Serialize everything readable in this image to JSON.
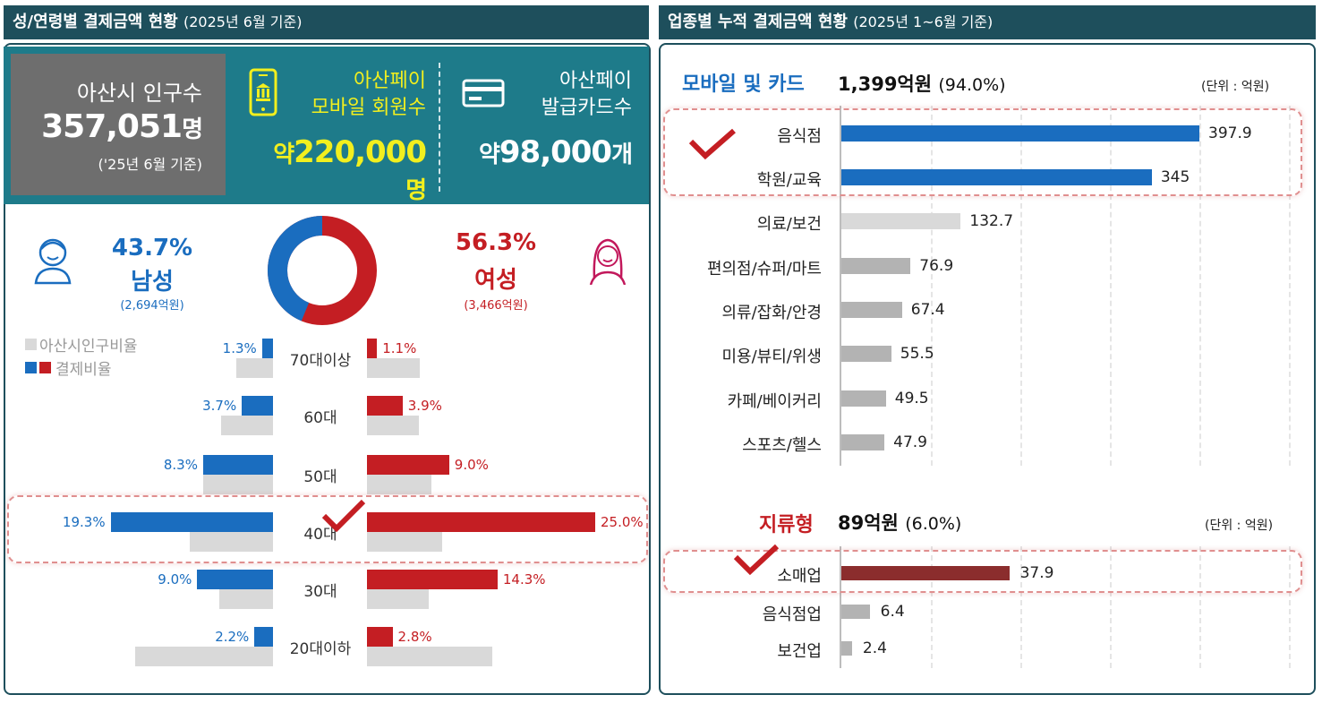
{
  "left": {
    "header": {
      "title": "성/연령별 결제금액 현황",
      "sub": "(2025년 6월 기준)"
    },
    "population": {
      "label": "아산시 인구수",
      "value": "357,051",
      "unit": "명",
      "note": "('25년 6월 기준)"
    },
    "mobile_members": {
      "title_line1": "아산페이",
      "title_line2": "모바일 회원수",
      "prefix": "약",
      "value": "220,000",
      "unit": "명",
      "icon": "mobile-bank-icon"
    },
    "cards_issued": {
      "title_line1": "아산페이",
      "title_line2": "발급카드수",
      "prefix": "약",
      "value": "98,000",
      "unit": "개",
      "icon": "card-icon"
    },
    "male": {
      "pct": "43.7%",
      "label": "남성",
      "amount": "(2,694억원)",
      "icon": "male-user-icon"
    },
    "female": {
      "pct": "56.3%",
      "label": "여성",
      "amount": "(3,466억원)",
      "icon": "female-user-icon"
    },
    "legend": {
      "population_ratio": "아산시인구비율",
      "payment_ratio": "결제비율"
    },
    "colors": {
      "male": "#1a6dbf",
      "female": "#c41e23",
      "population": "#d9d9d9",
      "band": "#1e7b8a",
      "header": "#1e4f5c",
      "highlight": "#ffff33"
    }
  },
  "right": {
    "header": {
      "title": "업종별 누적 결제금액 현황",
      "sub": "(2025년 1~6월 기준)"
    },
    "mobile_card": {
      "title": "모바일 및 카드",
      "total": "1,399억원",
      "pct": "(94.0%)",
      "unit": "(단위 : 억원)"
    },
    "jiryu": {
      "title": "지류형",
      "total": "89억원",
      "pct": "(6.0%)",
      "unit": "(단위 : 억원)"
    }
  },
  "chart_data": [
    {
      "type": "bar",
      "title": "",
      "orientation": "horizontal-pyramid",
      "categories": [
        "70대이상",
        "60대",
        "50대",
        "40대",
        "30대",
        "20대이하"
      ],
      "series": [
        {
          "name": "남성",
          "values": [
            1.3,
            3.7,
            8.3,
            19.3,
            9.0,
            2.2
          ],
          "labels": [
            "1.3%",
            "3.7%",
            "8.3%",
            "19.3%",
            "9.0%",
            "2.2%"
          ]
        },
        {
          "name": "여성",
          "values": [
            1.1,
            3.9,
            9.0,
            25.0,
            14.3,
            2.8
          ],
          "labels": [
            "1.1%",
            "3.9%",
            "9.0%",
            "25.0%",
            "14.3%",
            "2.8%"
          ]
        },
        {
          "name": "아산시인구비율",
          "values_male": [
            3.8,
            5.4,
            7.2,
            8.6,
            5.6,
            14.3
          ],
          "values_female": [
            5.5,
            5.4,
            6.7,
            7.8,
            6.4,
            13.0
          ]
        }
      ],
      "highlight": "40대"
    },
    {
      "type": "bar",
      "title": "모바일 및 카드",
      "orientation": "horizontal",
      "categories": [
        "음식점",
        "학원/교육",
        "의료/보건",
        "편의점/슈퍼/마트",
        "의류/잡화/안경",
        "미용/뷰티/위생",
        "카페/베이커리",
        "스포츠/헬스"
      ],
      "values": [
        397.9,
        345,
        132.7,
        76.9,
        67.4,
        55.5,
        49.5,
        47.9
      ],
      "labels": [
        "397.9",
        "345",
        "132.7",
        "76.9",
        "67.4",
        "55.5",
        "49.5",
        "47.9"
      ],
      "colors": [
        "#1a6dbf",
        "#1a6dbf",
        "#d9d9d9",
        "#b3b3b3",
        "#b3b3b3",
        "#b3b3b3",
        "#b3b3b3",
        "#b3b3b3"
      ],
      "xlim": [
        0,
        500
      ],
      "highlight": [
        "음식점",
        "학원/교육"
      ]
    },
    {
      "type": "bar",
      "title": "지류형",
      "orientation": "horizontal",
      "categories": [
        "소매업",
        "음식점업",
        "보건업"
      ],
      "values": [
        37.9,
        6.4,
        2.4
      ],
      "labels": [
        "37.9",
        "6.4",
        "2.4"
      ],
      "colors": [
        "#8b2d2d",
        "#b3b3b3",
        "#b3b3b3"
      ],
      "xlim": [
        0,
        500
      ],
      "highlight": [
        "소매업"
      ]
    }
  ]
}
